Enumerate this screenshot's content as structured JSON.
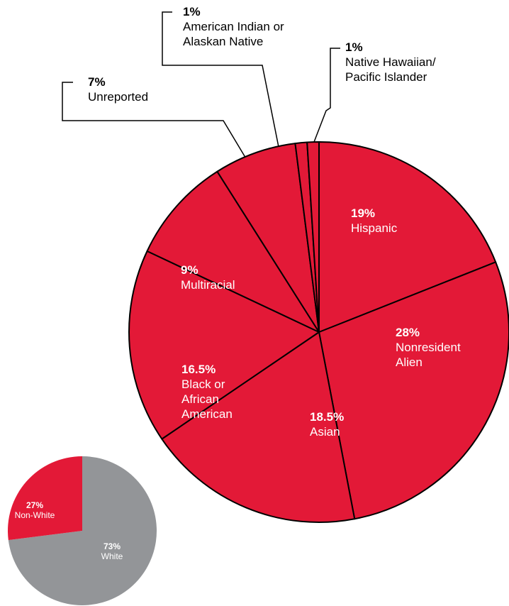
{
  "chart_data": [
    {
      "type": "pie",
      "categories": [
        "Hispanic",
        "Nonresident Alien",
        "Asian",
        "Black or African American",
        "Multiracial",
        "Unreported",
        "American Indian or Alaskan Native",
        "Native Hawaiian/ Pacific Islander"
      ],
      "values": [
        19,
        28,
        18.5,
        16.5,
        9,
        7,
        1,
        1
      ],
      "value_labels": [
        "19%",
        "28%",
        "18.5%",
        "16.5%",
        "9%",
        "7%",
        "1%",
        "1%"
      ],
      "color": "#e31937"
    },
    {
      "type": "pie",
      "categories": [
        "White",
        "Non-White"
      ],
      "values": [
        73,
        27
      ],
      "value_labels": [
        "73%",
        "27%"
      ],
      "colors": [
        "#939598",
        "#e31937"
      ]
    }
  ]
}
